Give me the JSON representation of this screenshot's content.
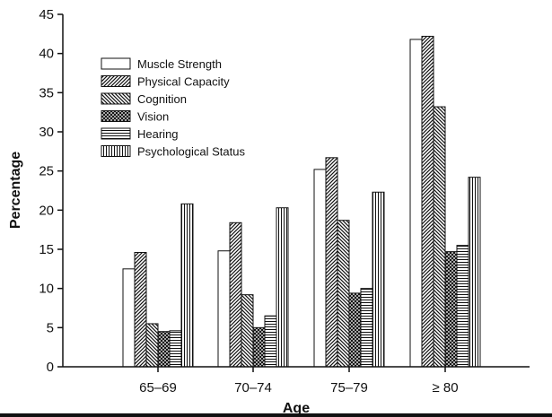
{
  "chart_data": {
    "type": "bar",
    "title": "",
    "xlabel": "Age",
    "ylabel": "Percentage",
    "ylim": [
      0,
      45
    ],
    "yticks": [
      0,
      5,
      10,
      15,
      20,
      25,
      30,
      35,
      40,
      45
    ],
    "categories": [
      "65–69",
      "70–74",
      "75–79",
      "≥ 80"
    ],
    "grid": false,
    "legend_position": "top-left",
    "series": [
      {
        "name": "Muscle Strength",
        "pattern": "solid-white",
        "values": [
          12.5,
          14.8,
          25.2,
          41.8
        ]
      },
      {
        "name": "Physical Capacity",
        "pattern": "diagonal-fwd",
        "values": [
          14.6,
          18.4,
          26.7,
          42.2
        ]
      },
      {
        "name": "Cognition",
        "pattern": "diagonal-back",
        "values": [
          5.5,
          9.2,
          18.7,
          33.2
        ]
      },
      {
        "name": "Vision",
        "pattern": "crosshatch",
        "values": [
          4.5,
          5.0,
          9.4,
          14.7
        ]
      },
      {
        "name": "Hearing",
        "pattern": "horizontal",
        "values": [
          4.6,
          6.5,
          10.0,
          15.5
        ]
      },
      {
        "name": "Psychological Status",
        "pattern": "vertical",
        "values": [
          20.8,
          20.3,
          22.3,
          24.2
        ]
      }
    ]
  }
}
